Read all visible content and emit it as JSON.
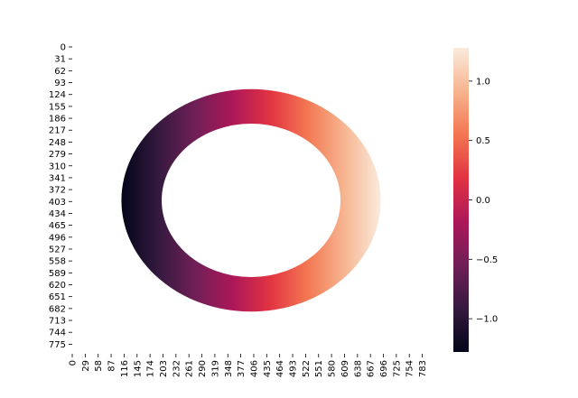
{
  "chart_data": {
    "type": "heatmap",
    "title": "",
    "xlabel": "",
    "ylabel": "",
    "x_tick_labels": [
      "0",
      "29",
      "58",
      "87",
      "116",
      "145",
      "174",
      "203",
      "232",
      "261",
      "290",
      "319",
      "348",
      "377",
      "406",
      "435",
      "464",
      "493",
      "522",
      "551",
      "580",
      "609",
      "638",
      "667",
      "696",
      "725",
      "754",
      "783"
    ],
    "y_tick_labels": [
      "0",
      "31",
      "62",
      "93",
      "124",
      "155",
      "186",
      "217",
      "248",
      "279",
      "310",
      "341",
      "372",
      "403",
      "434",
      "465",
      "496",
      "527",
      "558",
      "589",
      "620",
      "651",
      "682",
      "713",
      "744",
      "775"
    ],
    "x_range": [
      0,
      800
    ],
    "y_range": [
      0,
      800
    ],
    "colormap": "rocket",
    "annulus": {
      "center_x": 400,
      "center_y": 400,
      "outer_radius": 290,
      "inner_radius": 200,
      "value_min_at_left": -1.28,
      "value_max_at_right": 1.28,
      "value_varies_along": "x"
    },
    "colorbar": {
      "min": -1.28,
      "max": 1.28,
      "tick_values": [
        -1.0,
        -0.5,
        0.0,
        0.5,
        1.0
      ],
      "tick_labels": [
        "−1.0",
        "−0.5",
        "0.0",
        "0.5",
        "1.0"
      ]
    },
    "colors": {
      "rocket_stops": [
        "#03051a",
        "#35193e",
        "#701f57",
        "#ad1759",
        "#e13342",
        "#f37651",
        "#f6b48f",
        "#faebdd"
      ]
    }
  }
}
